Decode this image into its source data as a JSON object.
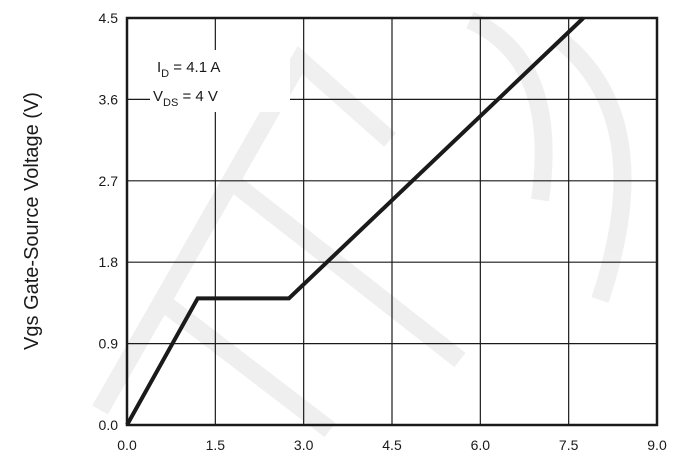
{
  "chart_data": {
    "type": "line",
    "title": "",
    "xlabel": "",
    "ylabel": "Vgs Gate-Source Voltage (V)",
    "xlim": [
      0,
      9
    ],
    "ylim": [
      0,
      4.5
    ],
    "x_ticks": [
      "0.0",
      "1.5",
      "3.0",
      "4.5",
      "6.0",
      "7.5",
      "9.0"
    ],
    "y_ticks": [
      "0.0",
      "0.9",
      "1.8",
      "2.7",
      "3.6",
      "4.5"
    ],
    "grid": true,
    "series": [
      {
        "x": [
          0.0,
          1.2,
          2.75,
          7.75
        ],
        "y": [
          0.0,
          1.4,
          1.4,
          4.5
        ],
        "color": "#1a1a1a"
      }
    ],
    "annotations": [
      {
        "name": "I",
        "sub": "D",
        "rest": " = 4.1 A"
      },
      {
        "name": "V",
        "sub": "DS",
        "rest": " = 4 V"
      }
    ]
  }
}
